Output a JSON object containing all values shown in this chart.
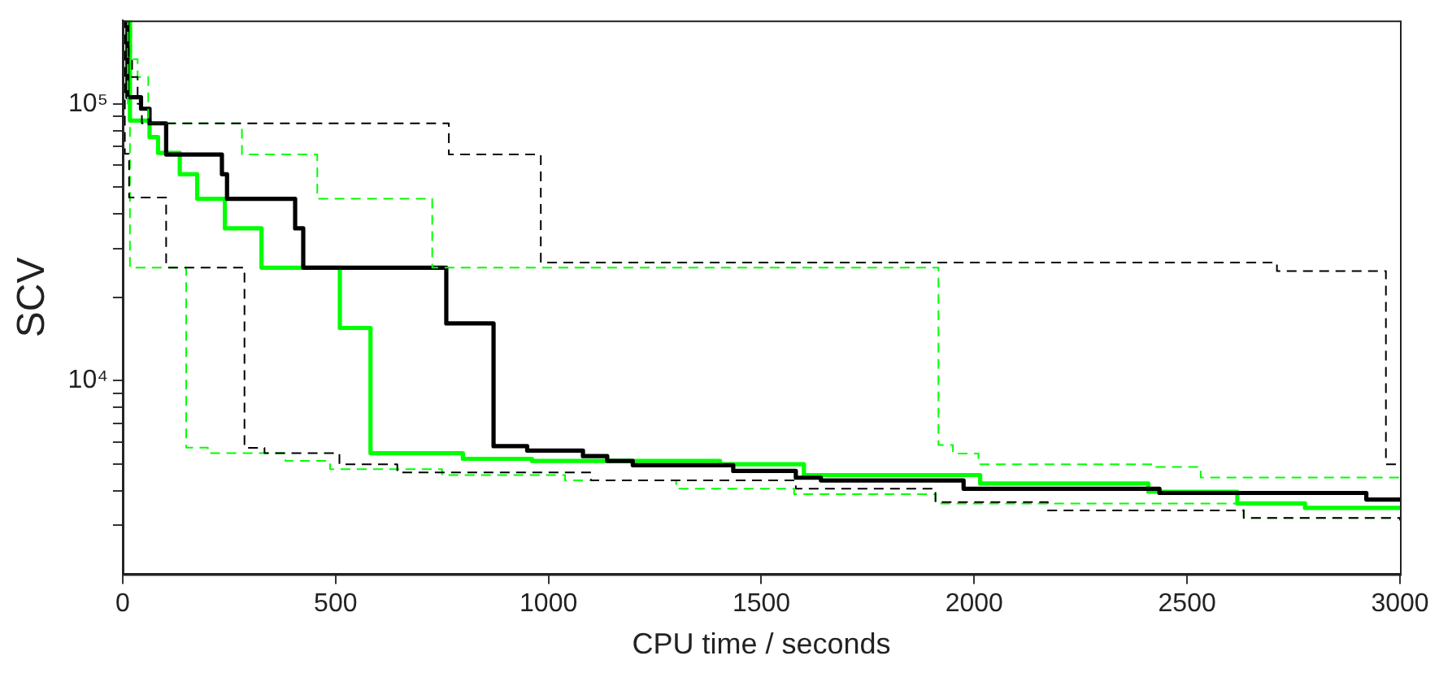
{
  "chart_data": {
    "type": "step",
    "xlabel": "CPU time / seconds",
    "ylabel": "SCV",
    "log": true,
    "grid": false,
    "legend": false,
    "xlim": [
      0,
      3000
    ],
    "xticks": [
      0,
      500,
      1000,
      1500,
      2000,
      2500,
      3000
    ],
    "ylim": [
      2000,
      200000
    ],
    "yticks": [
      {
        "value": 3000,
        "label": null
      },
      {
        "value": 4000,
        "label": null
      },
      {
        "value": 5000,
        "label": null
      },
      {
        "value": 6000,
        "label": null
      },
      {
        "value": 7000,
        "label": null
      },
      {
        "value": 8000,
        "label": null
      },
      {
        "value": 9000,
        "label": null
      },
      {
        "value": 10000,
        "label": "10⁴"
      },
      {
        "value": 20000,
        "label": null
      },
      {
        "value": 30000,
        "label": null
      },
      {
        "value": 40000,
        "label": null
      },
      {
        "value": 50000,
        "label": null
      },
      {
        "value": 60000,
        "label": null
      },
      {
        "value": 70000,
        "label": null
      },
      {
        "value": 80000,
        "label": null
      },
      {
        "value": 90000,
        "label": null
      },
      {
        "value": 100000,
        "label": "10⁵"
      }
    ],
    "series": [
      {
        "color": "#000000",
        "line_style": "dashed",
        "x": [
          0,
          8,
          14,
          22,
          35,
          45,
          766,
          982,
          2711,
          2967,
          3000
        ],
        "values": [
          200000,
          166000,
          145000,
          125000,
          100000,
          85000,
          65600,
          26700,
          24900,
          4990,
          4990
        ]
      },
      {
        "color": "#000000",
        "line_style": "dashed",
        "x": [
          0,
          5,
          15,
          102,
          286,
          333,
          509,
          645,
          1100,
          1581,
          1909,
          2173,
          2633,
          3000
        ],
        "values": [
          200000,
          66000,
          45900,
          25600,
          5720,
          5470,
          4990,
          4660,
          4360,
          4070,
          3640,
          3400,
          3190,
          3130
        ]
      },
      {
        "color": "#00ff00",
        "line_style": "dashed",
        "x": [
          0,
          20,
          35,
          60,
          280,
          457,
          727,
          1916,
          1950,
          2010,
          2427,
          2532,
          3000
        ],
        "values": [
          200000,
          145000,
          125000,
          85000,
          65600,
          45400,
          25600,
          5860,
          5450,
          4990,
          4880,
          4470,
          4360
        ]
      },
      {
        "color": "#00ff00",
        "line_style": "dashed",
        "x": [
          0,
          12,
          17,
          149,
          200,
          382,
          487,
          750,
          1039,
          1300,
          1577,
          1909,
          2633,
          3000
        ],
        "values": [
          200000,
          100000,
          25600,
          5730,
          5470,
          5130,
          4790,
          4560,
          4360,
          4070,
          3890,
          3600,
          3190,
          3130
        ]
      },
      {
        "color": "#000000",
        "line_style": "solid",
        "x": [
          0,
          11,
          43,
          63,
          102,
          233,
          245,
          405,
          424,
          760,
          871,
          950,
          1081,
          1138,
          1198,
          1434,
          1581,
          1640,
          1975,
          2435,
          2921,
          3000
        ],
        "values": [
          200000,
          105700,
          96000,
          85000,
          65600,
          55700,
          45400,
          35500,
          25600,
          16100,
          5800,
          5590,
          5340,
          5130,
          4950,
          4720,
          4460,
          4360,
          4070,
          3930,
          3720,
          3720
        ]
      },
      {
        "color": "#00ff00",
        "line_style": "solid",
        "x": [
          0,
          17,
          63,
          83,
          134,
          175,
          240,
          326,
          510,
          582,
          799,
          961,
          1403,
          1600,
          2014,
          2409,
          2618,
          2777,
          3000
        ],
        "values": [
          200000,
          87000,
          75800,
          66500,
          55700,
          45400,
          35500,
          25600,
          15500,
          5470,
          5220,
          5130,
          4990,
          4560,
          4250,
          3970,
          3600,
          3470,
          3470
        ]
      }
    ]
  }
}
